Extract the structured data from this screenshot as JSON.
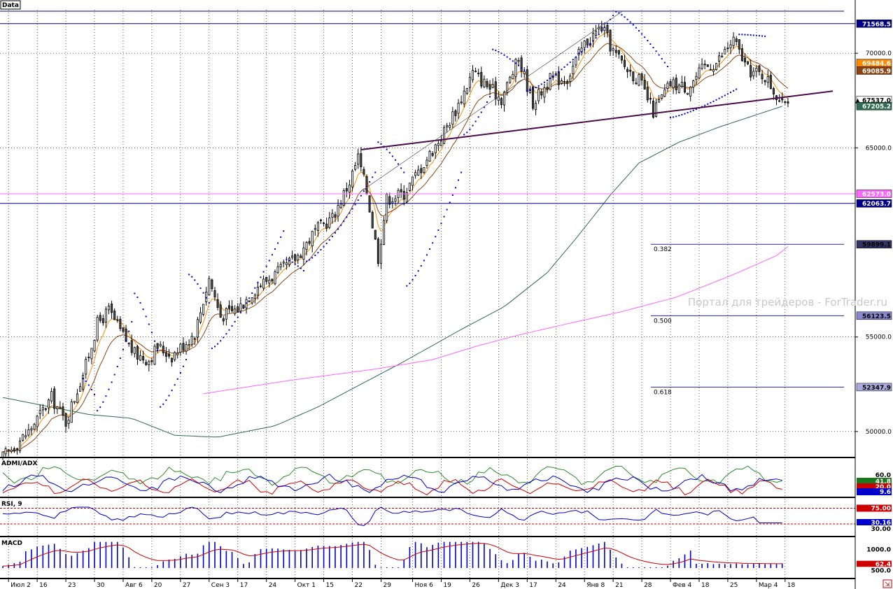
{
  "colors": {
    "bull": "#ffffff",
    "bear": "#4d4d4d",
    "wick": "#000000",
    "ma_fast": "#ff8c00",
    "ma_mid": "#8b4513",
    "ma_slow": "#2e6b4f",
    "ma_long": "#ff66ff",
    "psar": "#0000cc",
    "trend": "#4b0a4b",
    "hline_blue": "#00008b",
    "hline_pink": "#ff66ff",
    "fib": "#2a2a8a",
    "plus_di": "#2e8b2e",
    "minus_di": "#cc0000",
    "adx": "#0000cc",
    "rsi": "#0000cc",
    "macd_hist": "#0000cc",
    "macd_signal": "#cc0000",
    "watermark": "#c8c8c8"
  },
  "main": {
    "title": "Data",
    "ylim": [
      48700,
      72300
    ],
    "yticks": [
      {
        "v": 70000,
        "label": "70000.0"
      },
      {
        "v": 65000,
        "label": "65000.0"
      },
      {
        "v": 55000,
        "label": "55000.0"
      },
      {
        "v": 50000,
        "label": "50000.0"
      }
    ],
    "watermark": "Портал для трейдеров - ForTrader.ru"
  },
  "price_tags": [
    {
      "v": 71568.5,
      "label": "71568.5",
      "bg": "#00008b",
      "fg": "#ffffff",
      "line": true
    },
    {
      "v": 69484.6,
      "label": "69484.6",
      "bg": "#ff8c00",
      "fg": "#ffffff",
      "line": false
    },
    {
      "v": 69085.9,
      "label": "69085.9",
      "bg": "#8b4513",
      "fg": "#ffffff",
      "line": false
    },
    {
      "v": 67537.0,
      "label": "▲ 67537.0",
      "bg": "#ffffff",
      "fg": "#000000",
      "line": false
    },
    {
      "v": 67205.2,
      "label": "67205.2",
      "bg": "#2e6b4f",
      "fg": "#ffffff",
      "line": false
    },
    {
      "v": 62573.0,
      "label": "62573.0",
      "bg": "#ff66ff",
      "fg": "#ffffff",
      "line": true
    },
    {
      "v": 62063.7,
      "label": "62063.7",
      "bg": "#00008b",
      "fg": "#ffffff",
      "line": true
    },
    {
      "v": 59899.1,
      "label": "59899.1",
      "bg": "#333366",
      "fg": "#000000",
      "line": false
    },
    {
      "v": 56123.5,
      "label": "56123.5",
      "bg": "#8888cc",
      "fg": "#000000",
      "line": false
    },
    {
      "v": 52347.9,
      "label": "52347.9",
      "bg": "#aaaadd",
      "fg": "#000000",
      "line": false
    }
  ],
  "fib_levels": [
    {
      "label": "0.382",
      "v": 59899.1
    },
    {
      "label": "0.500",
      "v": 56123.5
    },
    {
      "label": "0.618",
      "v": 52347.9
    }
  ],
  "chart_data": {
    "type": "candlestick",
    "x_labels": [
      "Июл 2",
      "16",
      "23",
      "30",
      "Авг 6",
      "20",
      "27",
      "Сен 3",
      "17",
      "24",
      "Окт 1",
      "15",
      "22",
      "29",
      "Ноя 6",
      "19",
      "26",
      "Дек 3",
      "17",
      "24",
      "Янв 8",
      "21",
      "28",
      "Фев 4",
      "18",
      "25",
      "Мар 4",
      "18"
    ],
    "close_path": [
      [
        0,
        48500
      ],
      [
        10,
        50000
      ],
      [
        18,
        51800
      ],
      [
        23,
        50500
      ],
      [
        30,
        53500
      ],
      [
        34,
        55700
      ],
      [
        38,
        56400
      ],
      [
        42,
        55300
      ],
      [
        47,
        54100
      ],
      [
        52,
        53800
      ],
      [
        55,
        54500
      ],
      [
        60,
        54000
      ],
      [
        68,
        55200
      ],
      [
        73,
        58100
      ],
      [
        77,
        56100
      ],
      [
        83,
        56500
      ],
      [
        90,
        57700
      ],
      [
        98,
        58500
      ],
      [
        104,
        59300
      ],
      [
        110,
        60600
      ],
      [
        116,
        61300
      ],
      [
        122,
        63200
      ],
      [
        125,
        64500
      ],
      [
        128,
        62700
      ],
      [
        132,
        59200
      ],
      [
        135,
        62300
      ],
      [
        141,
        62600
      ],
      [
        148,
        64200
      ],
      [
        154,
        65600
      ],
      [
        160,
        67300
      ],
      [
        165,
        69000
      ],
      [
        170,
        68300
      ],
      [
        175,
        67600
      ],
      [
        181,
        69700
      ],
      [
        186,
        67400
      ],
      [
        192,
        68600
      ],
      [
        198,
        68700
      ],
      [
        204,
        70500
      ],
      [
        210,
        71400
      ],
      [
        214,
        70100
      ],
      [
        218,
        69300
      ],
      [
        223,
        68600
      ],
      [
        228,
        66900
      ],
      [
        234,
        68400
      ],
      [
        240,
        68200
      ],
      [
        246,
        69300
      ],
      [
        250,
        69500
      ],
      [
        256,
        70700
      ],
      [
        261,
        69100
      ],
      [
        267,
        68800
      ],
      [
        272,
        67540
      ]
    ],
    "psar_segments": [
      {
        "from": 28,
        "to": 32,
        "v_start": 52800,
        "v_end": 51950
      },
      {
        "from": 33,
        "to": 45,
        "v_start": 51100,
        "v_end": 55800
      },
      {
        "from": 46,
        "to": 54,
        "v_start": 57300,
        "v_end": 54300
      },
      {
        "from": 55,
        "to": 64,
        "v_start": 51300,
        "v_end": 53800
      },
      {
        "from": 65,
        "to": 72,
        "v_start": 58300,
        "v_end": 56800
      },
      {
        "from": 73,
        "to": 98,
        "v_start": 54400,
        "v_end": 60600
      },
      {
        "from": 99,
        "to": 105,
        "v_start": 59100,
        "v_end": 58500
      },
      {
        "from": 106,
        "to": 130,
        "v_start": 59000,
        "v_end": 63700
      },
      {
        "from": 131,
        "to": 140,
        "v_start": 65300,
        "v_end": 63700
      },
      {
        "from": 141,
        "to": 160,
        "v_start": 57700,
        "v_end": 63700
      },
      {
        "from": 161,
        "to": 170,
        "v_start": 65700,
        "v_end": 67700
      },
      {
        "from": 171,
        "to": 182,
        "v_start": 70200,
        "v_end": 69100
      },
      {
        "from": 183,
        "to": 200,
        "v_start": 68000,
        "v_end": 69800
      },
      {
        "from": 201,
        "to": 213,
        "v_start": 70000,
        "v_end": 72000
      },
      {
        "from": 214,
        "to": 232,
        "v_start": 72200,
        "v_end": 69300
      },
      {
        "from": 233,
        "to": 256,
        "v_start": 66600,
        "v_end": 68100
      },
      {
        "from": 257,
        "to": 266,
        "v_start": 71000,
        "v_end": 70900
      }
    ],
    "ma_long_path": [
      [
        70,
        52000
      ],
      [
        100,
        52700
      ],
      [
        130,
        53300
      ],
      [
        150,
        53800
      ],
      [
        165,
        54500
      ],
      [
        180,
        55100
      ],
      [
        200,
        55800
      ],
      [
        215,
        56300
      ],
      [
        235,
        57100
      ],
      [
        255,
        58300
      ],
      [
        270,
        59300
      ],
      [
        275,
        59900
      ]
    ],
    "ma_slow_path": [
      [
        0,
        51800
      ],
      [
        30,
        50900
      ],
      [
        45,
        50700
      ],
      [
        60,
        49800
      ],
      [
        75,
        49700
      ],
      [
        95,
        50300
      ],
      [
        110,
        51300
      ],
      [
        125,
        52500
      ],
      [
        140,
        53700
      ],
      [
        160,
        55400
      ],
      [
        175,
        56600
      ],
      [
        190,
        58400
      ],
      [
        200,
        60200
      ],
      [
        212,
        62500
      ],
      [
        222,
        64200
      ],
      [
        236,
        65300
      ],
      [
        250,
        66100
      ],
      [
        262,
        66700
      ],
      [
        272,
        67200
      ]
    ],
    "trendline": {
      "i1": 125,
      "v1": 64900,
      "i2": 275,
      "v2": 67800
    },
    "channel_line": {
      "i1": 125,
      "v1": 62700,
      "i2": 216,
      "v2": 72200
    }
  },
  "adx": {
    "title": "ADMI/ADX",
    "levels": [
      {
        "label": "60.0"
      }
    ],
    "plus_di": "41.8",
    "adx_value": "9.6",
    "minus_di": "20.0"
  },
  "rsi": {
    "title": "RSI, 9",
    "upper": "75.00",
    "value": "30.16",
    "lower": "30.00"
  },
  "macd": {
    "title": "MACD",
    "level": "1000.0",
    "value": "62.4",
    "lower": "500.0"
  }
}
